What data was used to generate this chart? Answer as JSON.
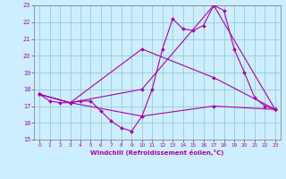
{
  "xlabel": "Windchill (Refroidissement éolien,°C)",
  "xlim": [
    -0.5,
    23.5
  ],
  "ylim": [
    15,
    23
  ],
  "yticks": [
    15,
    16,
    17,
    18,
    19,
    20,
    21,
    22,
    23
  ],
  "xticks": [
    0,
    1,
    2,
    3,
    4,
    5,
    6,
    7,
    8,
    9,
    10,
    11,
    12,
    13,
    14,
    15,
    16,
    17,
    18,
    19,
    20,
    21,
    22,
    23
  ],
  "bg_color": "#cceeff",
  "line_color": "#aa00aa",
  "grid_color": "#99cccc",
  "line1_x": [
    0,
    1,
    2,
    3,
    4,
    5,
    6,
    7,
    8,
    9,
    10,
    11,
    12,
    13,
    14,
    15,
    16,
    17,
    18,
    19,
    20,
    21,
    22,
    23
  ],
  "line1_y": [
    17.7,
    17.3,
    17.2,
    17.2,
    17.3,
    17.3,
    16.7,
    16.1,
    15.7,
    15.5,
    16.4,
    18.0,
    20.4,
    22.2,
    21.6,
    21.5,
    21.8,
    23.0,
    22.7,
    20.4,
    19.0,
    17.5,
    17.0,
    16.8
  ],
  "line2_x": [
    0,
    3,
    10,
    17,
    23
  ],
  "line2_y": [
    17.7,
    17.2,
    18.0,
    23.0,
    16.8
  ],
  "line3_x": [
    0,
    3,
    10,
    17,
    23
  ],
  "line3_y": [
    17.7,
    17.2,
    20.4,
    18.7,
    16.8
  ],
  "line4_x": [
    0,
    3,
    10,
    17,
    23
  ],
  "line4_y": [
    17.7,
    17.2,
    16.4,
    17.0,
    16.8
  ]
}
